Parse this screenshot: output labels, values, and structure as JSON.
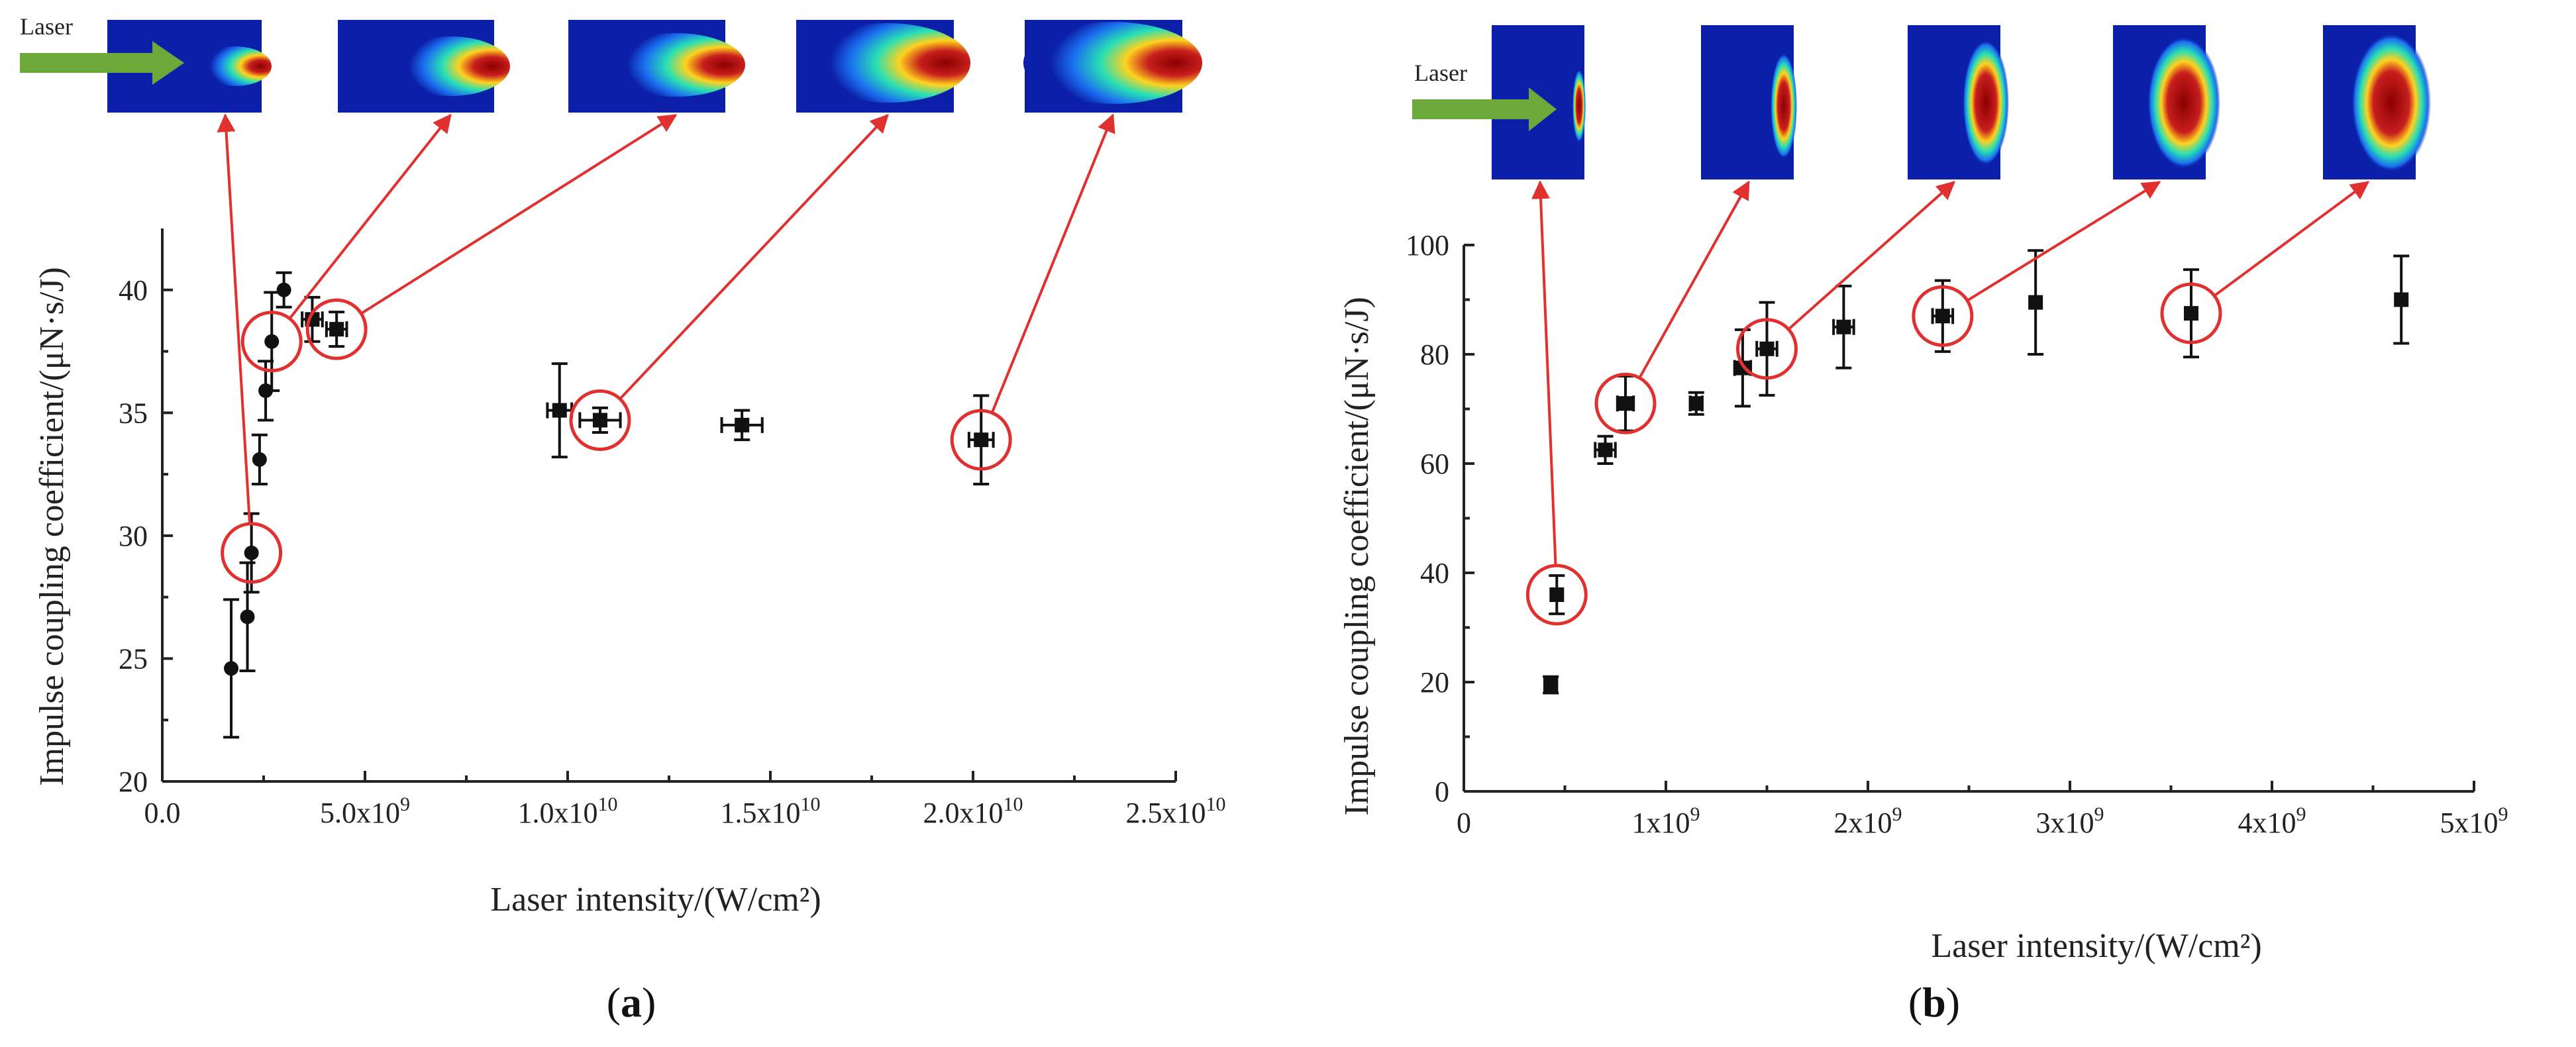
{
  "chart_data": [
    {
      "type": "scatter",
      "panel": "a",
      "panel_label": "a",
      "xlabel": "Laser intensity/(W/cm²)",
      "ylabel": "Impulse coupling coefficient/(μN·s/J)",
      "xlim": [
        0,
        25000000000.0
      ],
      "ylim": [
        20,
        42.5
      ],
      "xticks": [
        0,
        5000000000.0,
        10000000000.0,
        15000000000.0,
        20000000000.0,
        25000000000.0
      ],
      "xtick_labels": [
        {
          "base": "0.0",
          "exp": ""
        },
        {
          "base": "5.0x10",
          "exp": "9"
        },
        {
          "base": "1.0x10",
          "exp": "10"
        },
        {
          "base": "1.5x10",
          "exp": "10"
        },
        {
          "base": "2.0x10",
          "exp": "10"
        },
        {
          "base": "2.5x10",
          "exp": "10"
        }
      ],
      "yticks": [
        20,
        25,
        30,
        35,
        40
      ],
      "ytick_labels": [
        "20",
        "25",
        "30",
        "35",
        "40"
      ],
      "points": [
        {
          "x": 1700000000.0,
          "y": 24.6,
          "yerr": 2.8,
          "xerr": 0,
          "marker": "circle"
        },
        {
          "x": 2100000000.0,
          "y": 26.7,
          "yerr": 2.2,
          "xerr": 0,
          "marker": "circle"
        },
        {
          "x": 2200000000.0,
          "y": 29.3,
          "yerr": 1.6,
          "xerr": 0,
          "marker": "circle"
        },
        {
          "x": 2400000000.0,
          "y": 33.1,
          "yerr": 1.0,
          "xerr": 0,
          "marker": "circle"
        },
        {
          "x": 2550000000.0,
          "y": 35.9,
          "yerr": 1.2,
          "xerr": 0,
          "marker": "circle"
        },
        {
          "x": 2700000000.0,
          "y": 37.9,
          "yerr": 2.0,
          "xerr": 0,
          "marker": "circle"
        },
        {
          "x": 3000000000.0,
          "y": 40.0,
          "yerr": 0.7,
          "xerr": 0,
          "marker": "circle"
        },
        {
          "x": 3700000000.0,
          "y": 38.8,
          "yerr": 0.9,
          "xerr": 250000000.0,
          "marker": "square"
        },
        {
          "x": 4300000000.0,
          "y": 38.4,
          "yerr": 0.7,
          "xerr": 250000000.0,
          "marker": "square"
        },
        {
          "x": 9800000000.0,
          "y": 35.1,
          "yerr": 1.9,
          "xerr": 300000000.0,
          "marker": "square"
        },
        {
          "x": 10800000000.0,
          "y": 34.7,
          "yerr": 0.5,
          "xerr": 500000000.0,
          "marker": "square"
        },
        {
          "x": 14300000000.0,
          "y": 34.5,
          "yerr": 0.6,
          "xerr": 500000000.0,
          "marker": "square"
        },
        {
          "x": 20200000000.0,
          "y": 33.9,
          "yerr": 1.8,
          "xerr": 300000000.0,
          "marker": "square"
        }
      ],
      "highlighted": [
        {
          "x": 2200000000.0,
          "y": 29.3
        },
        {
          "x": 2700000000.0,
          "y": 37.9
        },
        {
          "x": 4300000000.0,
          "y": 38.4
        },
        {
          "x": 10800000000.0,
          "y": 34.7
        },
        {
          "x": 20200000000.0,
          "y": 33.9
        }
      ],
      "inset_label": "Laser"
    },
    {
      "type": "scatter",
      "panel": "b",
      "panel_label": "b",
      "xlabel": "Laser intensity/(W/cm²)",
      "ylabel": "Impulse coupling coefficient/(μN·s/J)",
      "xlim": [
        0,
        5000000000.0
      ],
      "ylim": [
        0,
        100
      ],
      "xticks": [
        0,
        1000000000.0,
        2000000000.0,
        3000000000.0,
        4000000000.0,
        5000000000.0
      ],
      "xtick_labels": [
        {
          "base": "0",
          "exp": ""
        },
        {
          "base": "1x10",
          "exp": "9"
        },
        {
          "base": "2x10",
          "exp": "9"
        },
        {
          "base": "3x10",
          "exp": "9"
        },
        {
          "base": "4x10",
          "exp": "9"
        },
        {
          "base": "5x10",
          "exp": "9"
        }
      ],
      "yticks": [
        0,
        20,
        40,
        60,
        80,
        100
      ],
      "ytick_labels": [
        "0",
        "20",
        "40",
        "60",
        "80",
        "100"
      ],
      "points": [
        {
          "x": 430000000.0,
          "y": 19.5,
          "yerr": 1.5,
          "xerr": 30000000.0,
          "marker": "square"
        },
        {
          "x": 460000000.0,
          "y": 36.0,
          "yerr": 3.5,
          "xerr": 0,
          "marker": "square"
        },
        {
          "x": 700000000.0,
          "y": 62.5,
          "yerr": 2.5,
          "xerr": 50000000.0,
          "marker": "square"
        },
        {
          "x": 800000000.0,
          "y": 71.0,
          "yerr": 5.0,
          "xerr": 40000000.0,
          "marker": "square"
        },
        {
          "x": 1150000000.0,
          "y": 71.0,
          "yerr": 2.0,
          "xerr": 30000000.0,
          "marker": "square"
        },
        {
          "x": 1380000000.0,
          "y": 77.5,
          "yerr": 7.0,
          "xerr": 40000000.0,
          "marker": "square"
        },
        {
          "x": 1500000000.0,
          "y": 81.0,
          "yerr": 8.5,
          "xerr": 50000000.0,
          "marker": "square"
        },
        {
          "x": 1880000000.0,
          "y": 85.0,
          "yerr": 7.5,
          "xerr": 50000000.0,
          "marker": "square"
        },
        {
          "x": 2370000000.0,
          "y": 87.0,
          "yerr": 6.5,
          "xerr": 50000000.0,
          "marker": "square"
        },
        {
          "x": 2830000000.0,
          "y": 89.5,
          "yerr": 9.5,
          "xerr": 0,
          "marker": "square"
        },
        {
          "x": 3600000000.0,
          "y": 87.5,
          "yerr": 8.0,
          "xerr": 0,
          "marker": "square"
        },
        {
          "x": 4640000000.0,
          "y": 90.0,
          "yerr": 8.0,
          "xerr": 0,
          "marker": "square"
        }
      ],
      "highlighted": [
        {
          "x": 460000000.0,
          "y": 36.0
        },
        {
          "x": 800000000.0,
          "y": 71.0
        },
        {
          "x": 1500000000.0,
          "y": 81.0
        },
        {
          "x": 2370000000.0,
          "y": 87.0
        },
        {
          "x": 3600000000.0,
          "y": 87.5
        }
      ],
      "inset_label": "Laser"
    }
  ]
}
